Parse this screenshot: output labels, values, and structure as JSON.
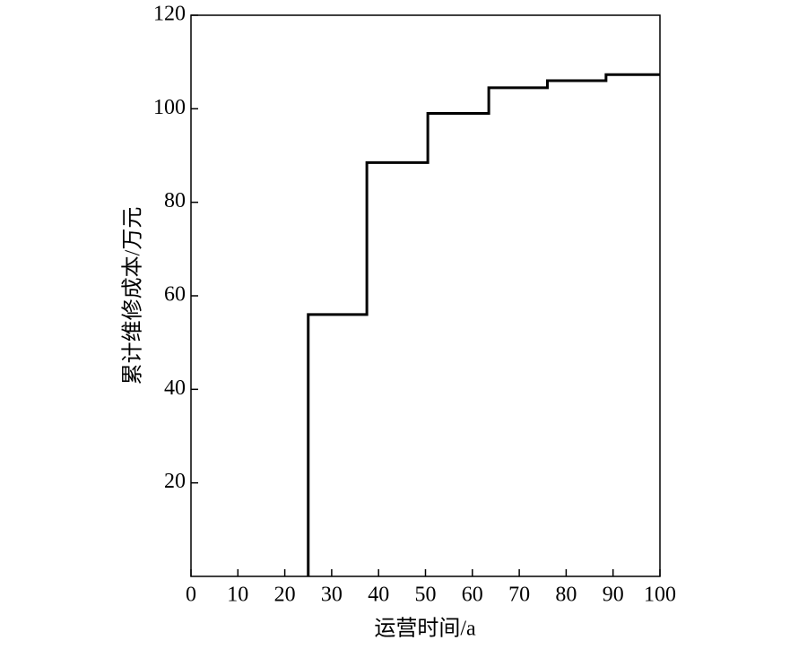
{
  "chart_data": {
    "type": "step",
    "x_label": "运营时间/a",
    "y_label": "累计维修成本/万元",
    "x": [
      25,
      25,
      37.5,
      50.5,
      63.5,
      76,
      88.5,
      100
    ],
    "values": [
      0,
      56,
      88.5,
      99,
      104.5,
      106,
      107.3,
      107.3
    ],
    "color": "#000000",
    "xlim": [
      0,
      100
    ],
    "xticks": [
      0,
      10,
      20,
      30,
      40,
      50,
      60,
      70,
      80,
      90,
      100
    ],
    "ylim": [
      0,
      120
    ],
    "yticks": [
      20,
      40,
      60,
      80,
      100,
      120
    ],
    "grid": false
  }
}
